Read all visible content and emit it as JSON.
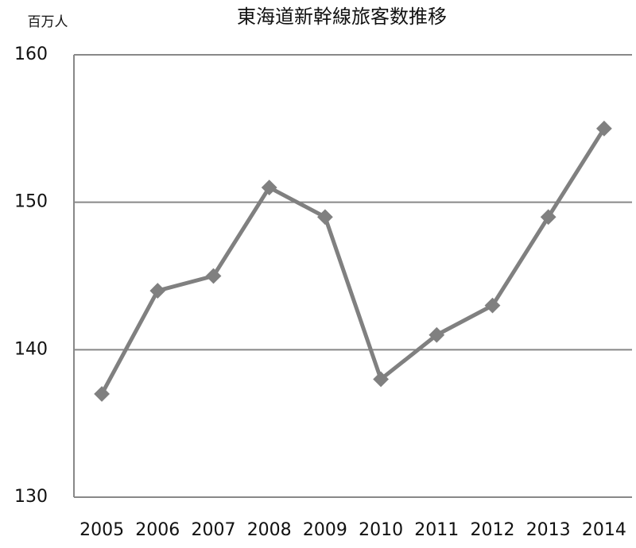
{
  "chart_data": {
    "type": "line",
    "title": "東海道新幹線旅客数推移",
    "y_unit": "百万人",
    "categories": [
      "2005",
      "2006",
      "2007",
      "2008",
      "2009",
      "2010",
      "2011",
      "2012",
      "2013",
      "2014"
    ],
    "values": [
      137,
      144,
      145,
      151,
      149,
      138,
      141,
      143,
      149,
      155
    ],
    "color": "#808080",
    "ylim": [
      130,
      160
    ],
    "yticks": [
      130,
      140,
      150,
      160
    ],
    "grid": true
  }
}
